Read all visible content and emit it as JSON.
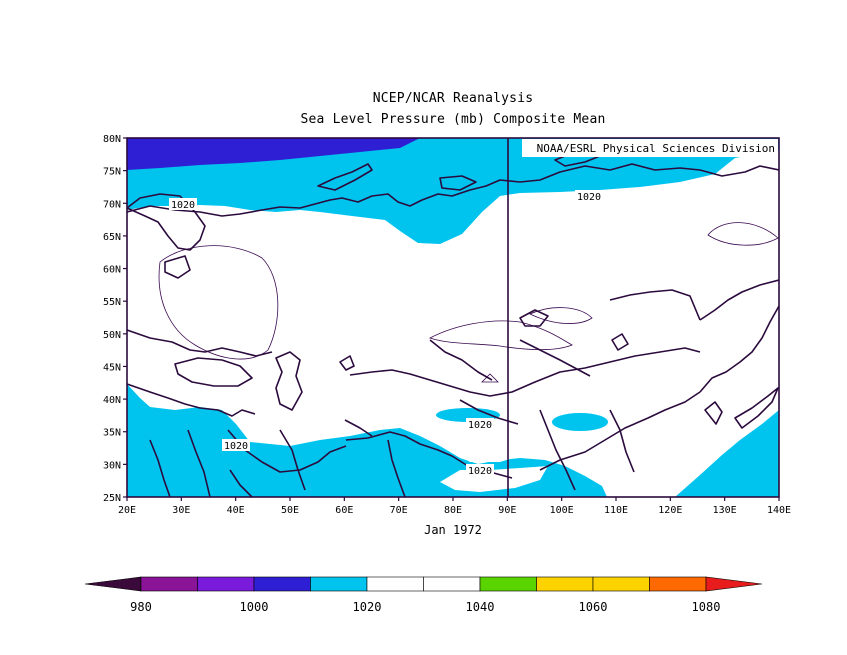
{
  "header": {
    "title": "NCEP/NCAR Reanalysis",
    "subtitle": "Sea Level Pressure (mb) Composite Mean"
  },
  "map": {
    "credit": "NOAA/ESRL Physical Sciences Division",
    "period_label": "Jan 1972",
    "lon_range": [
      20,
      140
    ],
    "lat_range": [
      25,
      80
    ],
    "lon_ticks": [
      "20E",
      "30E",
      "40E",
      "50E",
      "60E",
      "70E",
      "80E",
      "90E",
      "100E",
      "110E",
      "120E",
      "130E",
      "140E"
    ],
    "lat_ticks": [
      "80N",
      "75N",
      "70N",
      "65N",
      "60N",
      "55N",
      "50N",
      "45N",
      "40N",
      "35N",
      "30N",
      "25N"
    ],
    "contour_labels": [
      "1020",
      "1020",
      "1020",
      "1020",
      "1020"
    ]
  },
  "colorbar": {
    "tick_labels": [
      "980",
      "1000",
      "1020",
      "1040",
      "1060",
      "1080"
    ],
    "bins": [
      {
        "from": 970,
        "to": 980,
        "color": "#3a0a3a"
      },
      {
        "from": 980,
        "to": 990,
        "color": "#8a1497"
      },
      {
        "from": 990,
        "to": 1000,
        "color": "#7a1adb"
      },
      {
        "from": 1000,
        "to": 1010,
        "color": "#2e1fd4"
      },
      {
        "from": 1010,
        "to": 1020,
        "color": "#00c4ee"
      },
      {
        "from": 1020,
        "to": 1030,
        "color": "#ffffff"
      },
      {
        "from": 1030,
        "to": 1040,
        "color": "#ffffff"
      },
      {
        "from": 1040,
        "to": 1050,
        "color": "#5ad400"
      },
      {
        "from": 1050,
        "to": 1060,
        "color": "#fcd200"
      },
      {
        "from": 1060,
        "to": 1070,
        "color": "#fcd200"
      },
      {
        "from": 1070,
        "to": 1080,
        "color": "#ff6a00"
      },
      {
        "from": 1080,
        "to": 1090,
        "color": "#e81c1c"
      }
    ]
  },
  "colors": {
    "below_1020": "#00c4ee",
    "below_1000": "#2e1fd4",
    "coast": "#2b0a3d",
    "frame": "#2b0a3d"
  }
}
